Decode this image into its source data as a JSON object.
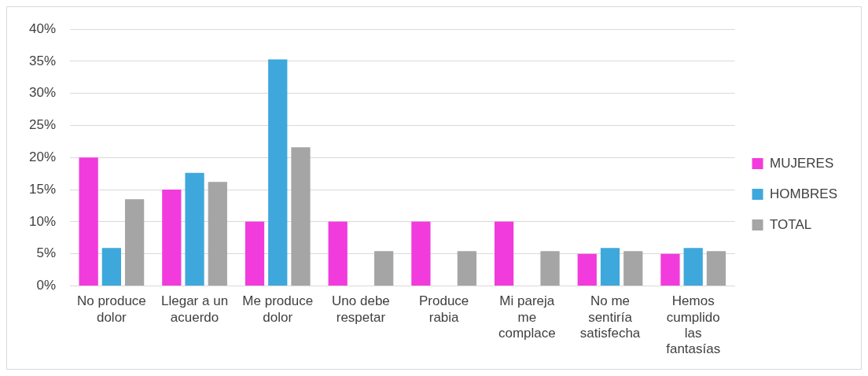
{
  "chart_data": {
    "type": "bar",
    "categories": [
      "No produce dolor",
      "Llegar a un acuerdo",
      "Me produce dolor",
      "Uno debe respetar",
      "Produce rabia",
      "Mi pareja me complace",
      "No me sentiría satisfecha",
      "Hemos cumplido las fantasías"
    ],
    "series": [
      {
        "name": "MUJERES",
        "color": "#f23bdc",
        "values": [
          20,
          15,
          10,
          10,
          10,
          10,
          5,
          5
        ]
      },
      {
        "name": "HOMBRES",
        "color": "#3ea8dc",
        "values": [
          5.9,
          17.6,
          35.3,
          0,
          0,
          0,
          5.9,
          5.9
        ]
      },
      {
        "name": "TOTAL",
        "color": "#a5a5a5",
        "values": [
          13.5,
          16.2,
          21.6,
          5.4,
          5.4,
          5.4,
          5.4,
          5.4
        ]
      }
    ],
    "ylim": [
      0,
      40
    ],
    "yticks": [
      {
        "value": 0,
        "label": "0%"
      },
      {
        "value": 5,
        "label": "5%"
      },
      {
        "value": 10,
        "label": "10%"
      },
      {
        "value": 15,
        "label": "15%"
      },
      {
        "value": 20,
        "label": "20%"
      },
      {
        "value": 25,
        "label": "25%"
      },
      {
        "value": 30,
        "label": "30%"
      },
      {
        "value": 35,
        "label": "35%"
      },
      {
        "value": 40,
        "label": "40%"
      }
    ],
    "grid": "y",
    "legend": "right"
  }
}
